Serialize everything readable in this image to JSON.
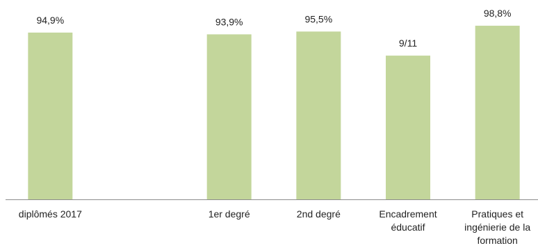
{
  "chart_data": {
    "type": "bar",
    "categories": [
      [
        "diplômés 2017"
      ],
      [],
      [
        "1er degré"
      ],
      [
        "2nd degré"
      ],
      [
        "Encadrement",
        "éducatif"
      ],
      [
        "Pratiques et",
        "ingénierie de la",
        "formation"
      ]
    ],
    "values": [
      94.9,
      null,
      93.9,
      95.5,
      81.8,
      98.8
    ],
    "data_labels": [
      "94,9%",
      "",
      "93,9%",
      "95,5%",
      "9/11",
      "98,8%"
    ],
    "ylim": [
      0,
      100
    ],
    "grid": false,
    "legend": "none",
    "title": "",
    "xlabel": "",
    "ylabel": ""
  },
  "colors": {
    "bar": "#c3d69b",
    "axis": "#8c8c8c",
    "text": "#222222"
  }
}
